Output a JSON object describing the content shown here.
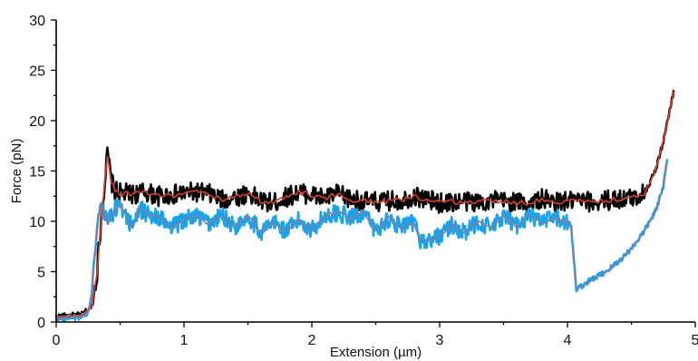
{
  "chart_data": {
    "type": "line",
    "title": "",
    "xlabel": "Extension (µm)",
    "ylabel": "Force (pN)",
    "xlim": [
      0,
      5
    ],
    "ylim": [
      0,
      30
    ],
    "x_ticks": [
      "0",
      "1",
      "2",
      "3",
      "4",
      "5"
    ],
    "y_ticks": [
      "0",
      "5",
      "10",
      "15",
      "20",
      "25",
      "30"
    ],
    "grid": false,
    "legend": "none",
    "colors": {
      "raw_stretch": "#000000",
      "smoothed_stretch": "#d8402a",
      "raw_relax": "#1aa3e8",
      "smoothed_relax": "#7d7fa6"
    },
    "series": [
      {
        "key": "stretch",
        "x": [
          0.0,
          0.1,
          0.2,
          0.28,
          0.32,
          0.35,
          0.38,
          0.4,
          0.41,
          0.43,
          0.46,
          0.5,
          0.6,
          0.7,
          0.8,
          0.9,
          1.0,
          1.1,
          1.2,
          1.3,
          1.4,
          1.5,
          1.6,
          1.7,
          1.8,
          1.9,
          2.0,
          2.1,
          2.2,
          2.3,
          2.4,
          2.5,
          2.6,
          2.7,
          2.8,
          2.9,
          3.0,
          3.1,
          3.2,
          3.3,
          3.4,
          3.5,
          3.6,
          3.7,
          3.8,
          3.9,
          4.0,
          4.1,
          4.2,
          4.3,
          4.4,
          4.5,
          4.6,
          4.65,
          4.7,
          4.75,
          4.8,
          4.83
        ],
        "y": [
          0.5,
          0.6,
          0.7,
          1.5,
          5.0,
          10.0,
          14.0,
          16.5,
          16.0,
          14.0,
          13.0,
          12.8,
          12.7,
          12.9,
          12.5,
          12.6,
          12.8,
          12.9,
          12.7,
          12.1,
          12.4,
          12.8,
          12.0,
          11.8,
          12.4,
          12.9,
          12.6,
          12.3,
          12.7,
          12.2,
          12.0,
          11.9,
          12.0,
          12.1,
          12.5,
          12.2,
          11.8,
          11.9,
          12.0,
          11.9,
          12.1,
          12.0,
          11.9,
          11.8,
          12.2,
          11.9,
          12.0,
          12.0,
          11.9,
          12.1,
          12.2,
          12.3,
          12.8,
          14.0,
          15.5,
          18.0,
          21.0,
          22.8
        ]
      },
      {
        "key": "relax",
        "x": [
          0.0,
          0.1,
          0.2,
          0.25,
          0.28,
          0.3,
          0.33,
          0.35,
          0.4,
          0.45,
          0.5,
          0.55,
          0.6,
          0.65,
          0.7,
          0.8,
          0.9,
          1.0,
          1.1,
          1.2,
          1.3,
          1.4,
          1.5,
          1.6,
          1.7,
          1.8,
          1.9,
          2.0,
          2.1,
          2.2,
          2.3,
          2.4,
          2.5,
          2.6,
          2.7,
          2.8,
          2.85,
          2.9,
          3.0,
          3.1,
          3.2,
          3.3,
          3.4,
          3.5,
          3.6,
          3.7,
          3.8,
          3.9,
          4.0,
          4.03,
          4.05,
          4.07,
          4.1,
          4.2,
          4.3,
          4.4,
          4.5,
          4.6,
          4.7,
          4.75,
          4.78
        ],
        "y": [
          0.3,
          0.4,
          0.5,
          1.0,
          3.0,
          7.0,
          10.5,
          11.5,
          10.0,
          11.0,
          11.8,
          10.5,
          9.2,
          11.3,
          10.8,
          10.5,
          9.3,
          10.2,
          10.5,
          9.8,
          10.6,
          9.4,
          10.6,
          8.9,
          9.9,
          9.0,
          10.1,
          9.2,
          10.5,
          10.9,
          10.3,
          10.9,
          9.0,
          10.3,
          9.4,
          9.8,
          8.2,
          7.9,
          8.6,
          9.6,
          8.8,
          10.0,
          9.3,
          10.4,
          9.6,
          10.6,
          9.9,
          10.3,
          9.9,
          9.5,
          6.0,
          3.3,
          3.5,
          4.3,
          5.0,
          6.0,
          7.3,
          9.0,
          11.3,
          13.5,
          16.0
        ]
      }
    ]
  }
}
